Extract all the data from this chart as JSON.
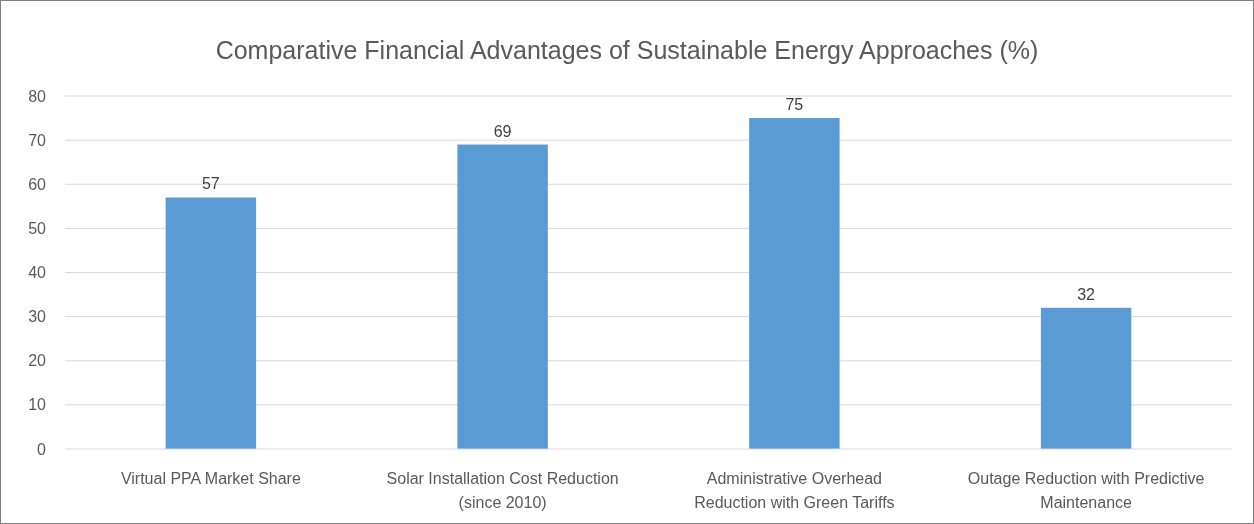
{
  "chart_data": {
    "type": "bar",
    "title": "Comparative Financial Advantages of Sustainable Energy Approaches (%)",
    "categories": [
      "Virtual PPA Market Share",
      "Solar Installation Cost Reduction (since 2010)",
      "Administrative Overhead Reduction with Green Tariffs",
      "Outage Reduction with Predictive Maintenance"
    ],
    "values": [
      57,
      69,
      75,
      32
    ],
    "color": "#5b9bd5",
    "ylim": [
      0,
      80
    ],
    "yticks": [
      0,
      10,
      20,
      30,
      40,
      50,
      60,
      70,
      80
    ],
    "grid": "y",
    "data_labels": true
  }
}
